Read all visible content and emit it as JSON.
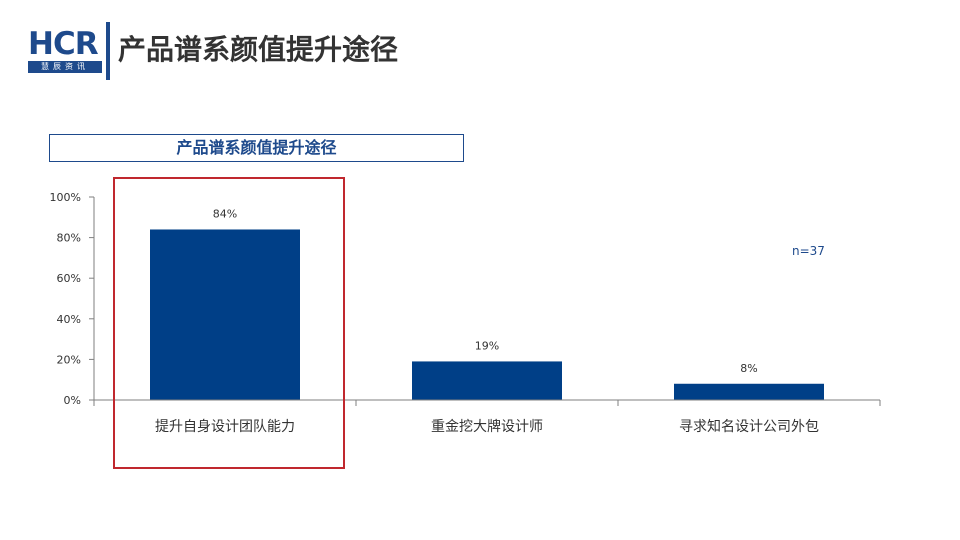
{
  "header": {
    "logo_text": "HCR",
    "logo_subtext": "慧辰资讯",
    "title": "产品谱系颜值提升途径"
  },
  "chart_data": {
    "type": "bar",
    "title": "产品谱系颜值提升途径",
    "categories": [
      "提升自身设计团队能力",
      "重金挖大牌设计师",
      "寻求知名设计公司外包"
    ],
    "values": [
      84,
      19,
      8
    ],
    "value_labels": [
      "84%",
      "19%",
      "8%"
    ],
    "yticks": [
      "0%",
      "20%",
      "40%",
      "60%",
      "80%",
      "100%"
    ],
    "ylim": [
      0,
      100
    ],
    "note": "n=37",
    "highlight_category": "提升自身设计团队能力",
    "colors": {
      "bar": "#003f87",
      "highlight_border": "#c0282e",
      "axis": "#7f7f7f"
    },
    "grid": false
  }
}
